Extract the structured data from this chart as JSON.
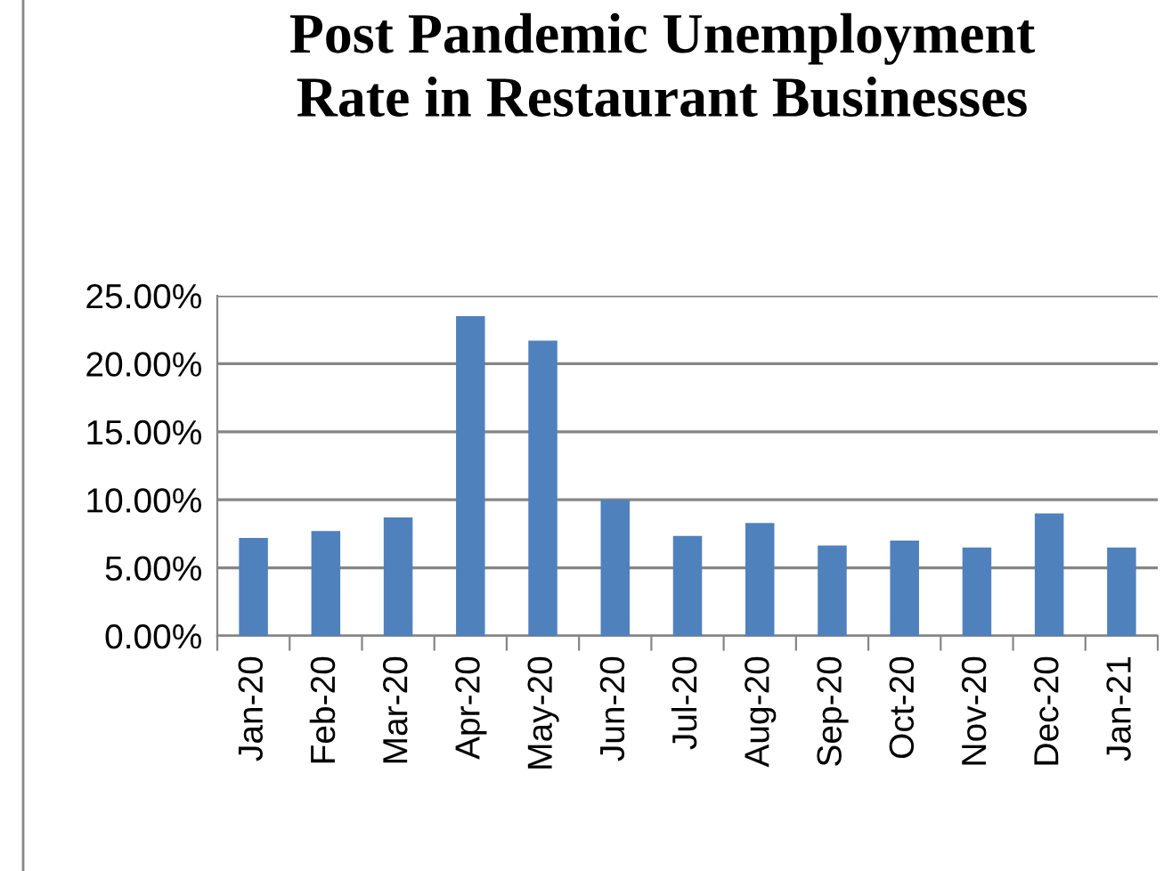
{
  "chart_data": {
    "type": "bar",
    "title": "Post Pandemic Unemployment\nRate in Restaurant Businesses",
    "categories": [
      "Jan-20",
      "Feb-20",
      "Mar-20",
      "Apr-20",
      "May-20",
      "Jun-20",
      "Jul-20",
      "Aug-20",
      "Sep-20",
      "Oct-20",
      "Nov-20",
      "Dec-20",
      "Jan-21"
    ],
    "values": [
      7.2,
      7.7,
      8.7,
      23.5,
      21.7,
      10.0,
      7.35,
      8.3,
      6.65,
      7.0,
      6.5,
      9.0,
      6.5
    ],
    "color": "#4f81bd",
    "ylim": [
      0,
      25
    ],
    "yticks": [
      {
        "value": 0,
        "label": "0.00%"
      },
      {
        "value": 5,
        "label": "5.00%"
      },
      {
        "value": 10,
        "label": "10.00%"
      },
      {
        "value": 15,
        "label": "15.00%"
      },
      {
        "value": 20,
        "label": "20.00%"
      },
      {
        "value": 25,
        "label": "25.00%"
      }
    ],
    "grid": "y",
    "legend": false
  }
}
